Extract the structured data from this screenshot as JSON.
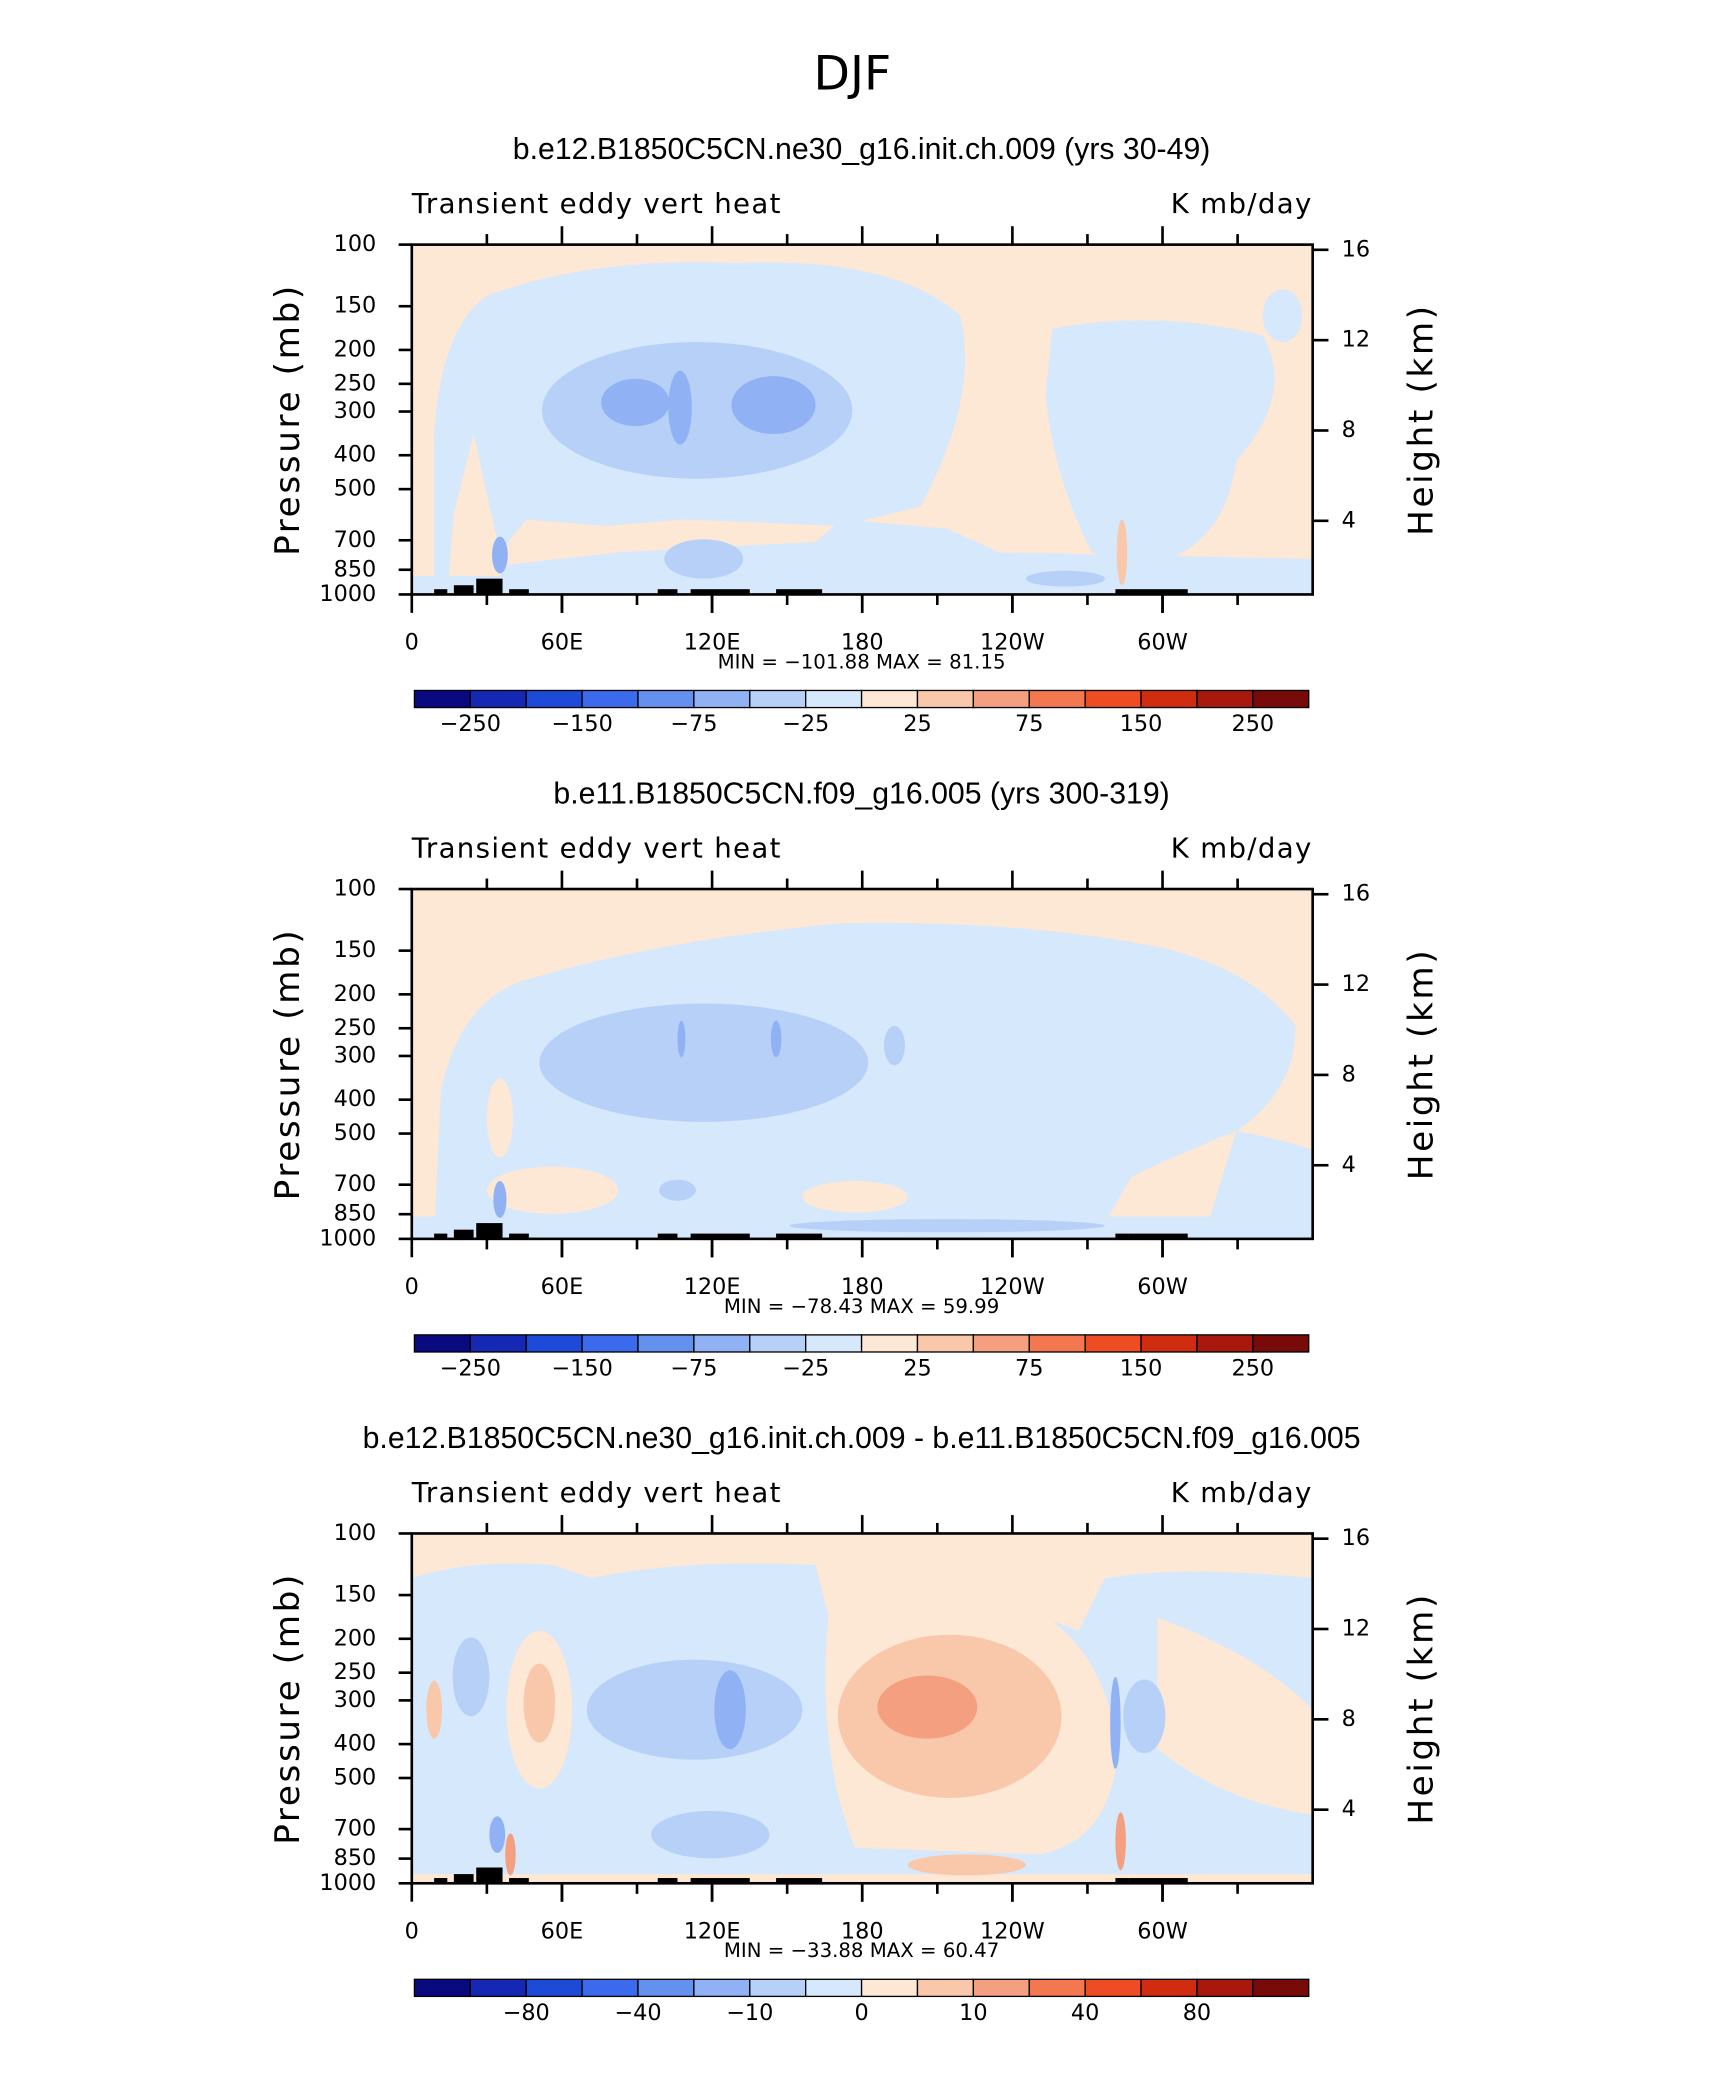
{
  "title": "DJF",
  "chart_data": [
    {
      "type": "contour",
      "title": "b.e12.B1850C5CN.ne30_g16.init.ch.009 (yrs 30-49)",
      "left_label": "Transient eddy vert heat",
      "right_label": "K mb/day",
      "ylabel": "Pressure (mb)",
      "y2label": "Height (km)",
      "ylog": true,
      "ylim": [
        1000,
        100
      ],
      "yticks": [
        100,
        150,
        200,
        250,
        300,
        400,
        500,
        700,
        850,
        1000
      ],
      "y2lim": [
        0.74,
        16.23
      ],
      "y2ticks": [
        4,
        8,
        12,
        16
      ],
      "xlim": [
        0,
        360
      ],
      "xticks": [
        0,
        {
          "value": 60,
          "label": "60E"
        },
        {
          "value": 120,
          "label": "120E"
        },
        180,
        {
          "value": 240,
          "label": "120W"
        },
        {
          "value": 300,
          "label": "60W"
        }
      ],
      "stats": "MIN = −101.88   MAX =   81.15",
      "colorbar": {
        "colors": [
          "#0a0a80",
          "#1428b4",
          "#1e4ad8",
          "#3c6aec",
          "#6490ee",
          "#90b2f4",
          "#b6d0f8",
          "#d6e8fc",
          "#fde7d5",
          "#f9c8aa",
          "#f4a080",
          "#f37850",
          "#ee4c22",
          "#d02c10",
          "#a8180c",
          "#780a0a"
        ],
        "levels": [
          -250,
          null,
          -150,
          null,
          -75,
          null,
          -25,
          null,
          25,
          null,
          75,
          null,
          150,
          null,
          250
        ]
      }
    },
    {
      "type": "contour",
      "title": "b.e11.B1850C5CN.f09_g16.005 (yrs 300-319)",
      "left_label": "Transient eddy vert heat",
      "right_label": "K mb/day",
      "ylabel": "Pressure (mb)",
      "y2label": "Height (km)",
      "ylog": true,
      "ylim": [
        1000,
        100
      ],
      "yticks": [
        100,
        150,
        200,
        250,
        300,
        400,
        500,
        700,
        850,
        1000
      ],
      "y2lim": [
        0.74,
        16.23
      ],
      "y2ticks": [
        4,
        8,
        12,
        16
      ],
      "xlim": [
        0,
        360
      ],
      "xticks": [
        0,
        {
          "value": 60,
          "label": "60E"
        },
        {
          "value": 120,
          "label": "120E"
        },
        180,
        {
          "value": 240,
          "label": "120W"
        },
        {
          "value": 300,
          "label": "60W"
        }
      ],
      "stats": "MIN =  −78.43   MAX =   59.99",
      "colorbar": {
        "colors": [
          "#0a0a80",
          "#1428b4",
          "#1e4ad8",
          "#3c6aec",
          "#6490ee",
          "#90b2f4",
          "#b6d0f8",
          "#d6e8fc",
          "#fde7d5",
          "#f9c8aa",
          "#f4a080",
          "#f37850",
          "#ee4c22",
          "#d02c10",
          "#a8180c",
          "#780a0a"
        ],
        "levels": [
          -250,
          null,
          -150,
          null,
          -75,
          null,
          -25,
          null,
          25,
          null,
          75,
          null,
          150,
          null,
          250
        ]
      }
    },
    {
      "type": "contour",
      "title": "b.e12.B1850C5CN.ne30_g16.init.ch.009 - b.e11.B1850C5CN.f09_g16.005",
      "left_label": "Transient eddy vert heat",
      "right_label": "K mb/day",
      "ylabel": "Pressure (mb)",
      "y2label": "Height (km)",
      "ylog": true,
      "ylim": [
        1000,
        100
      ],
      "yticks": [
        100,
        150,
        200,
        250,
        300,
        400,
        500,
        700,
        850,
        1000
      ],
      "y2lim": [
        0.74,
        16.23
      ],
      "y2ticks": [
        4,
        8,
        12,
        16
      ],
      "xlim": [
        0,
        360
      ],
      "xticks": [
        0,
        {
          "value": 60,
          "label": "60E"
        },
        {
          "value": 120,
          "label": "120E"
        },
        180,
        {
          "value": 240,
          "label": "120W"
        },
        {
          "value": 300,
          "label": "60W"
        }
      ],
      "stats": "MIN =  −33.88   MAX =   60.47",
      "colorbar": {
        "colors": [
          "#0a0a80",
          "#1428b4",
          "#1e4ad8",
          "#3c6aec",
          "#6490ee",
          "#90b2f4",
          "#b6d0f8",
          "#d6e8fc",
          "#fde7d5",
          "#f9c8aa",
          "#f4a080",
          "#f37850",
          "#ee4c22",
          "#d02c10",
          "#a8180c",
          "#780a0a"
        ],
        "levels": [
          null,
          -80,
          null,
          -40,
          null,
          -10,
          null,
          0,
          null,
          10,
          null,
          40,
          null,
          80,
          null
        ]
      }
    }
  ]
}
